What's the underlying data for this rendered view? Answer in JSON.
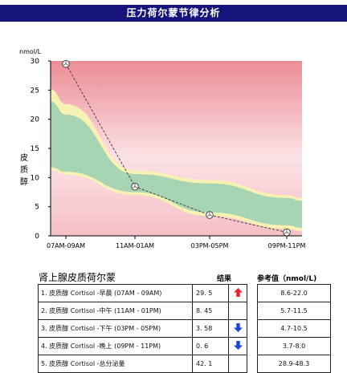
{
  "title": "压力荷尔蒙节律分析",
  "chart_data": {
    "type": "line",
    "unit": "nmol/L",
    "ylabel": "皮质醇",
    "ylim": [
      0,
      30
    ],
    "yticks": [
      0,
      5,
      10,
      15,
      20,
      25,
      30
    ],
    "x_labels": [
      "07AM-09AM",
      "11AM-01AM",
      "03PM-05PM",
      "09PM-11PM"
    ],
    "series": [
      {
        "values": [
          29.5,
          8.45,
          3.58,
          0.6
        ]
      }
    ],
    "bands": {
      "yellow_outer": {
        "upper": [
          22.6,
          11.2,
          9.6,
          7.0
        ],
        "lower": [
          10.5,
          7.0,
          3.4,
          1.2
        ]
      },
      "green_normal": {
        "upper": [
          20.8,
          10.6,
          9.0,
          6.5
        ],
        "lower": [
          11.0,
          7.5,
          4.0,
          1.8
        ]
      }
    },
    "colors": {
      "pink_top": "#ec8c95",
      "pink_bottom": "#f5bfc5",
      "yellow_band": "#f8f1b4",
      "green_band": "#a7d5b3",
      "marker_line": "#333333"
    }
  },
  "table": {
    "title": "肾上腺皮质荷尔蒙",
    "headers": {
      "result": "结果",
      "reference": "参考值（nmol/L)"
    },
    "rows": [
      {
        "name": "1. 皮质醇 Cortisol -早晨 (07AM - 09AM)",
        "value": "29. 5",
        "status": "up",
        "reference": "8.6-22.0"
      },
      {
        "name": "2. 皮质醇 Cortisol -中午 (11AM - 01PM)",
        "value": "8. 45",
        "status": "normal",
        "reference": "5.7-11.5"
      },
      {
        "name": "3. 皮质醇 Cortisol -下午 (03PM - 05PM)",
        "value": "3. 58",
        "status": "down",
        "reference": "4.7-10.5"
      },
      {
        "name": "4. 皮质醇 Cortisol -晚上 (09PM - 11PM)",
        "value": "0. 6",
        "status": "down",
        "reference": "3.7-8.0"
      },
      {
        "name": "5. 皮质醇 Cortisol -总分泌量",
        "value": "42. 1",
        "status": "normal",
        "reference": "28.9-48.3"
      }
    ]
  }
}
